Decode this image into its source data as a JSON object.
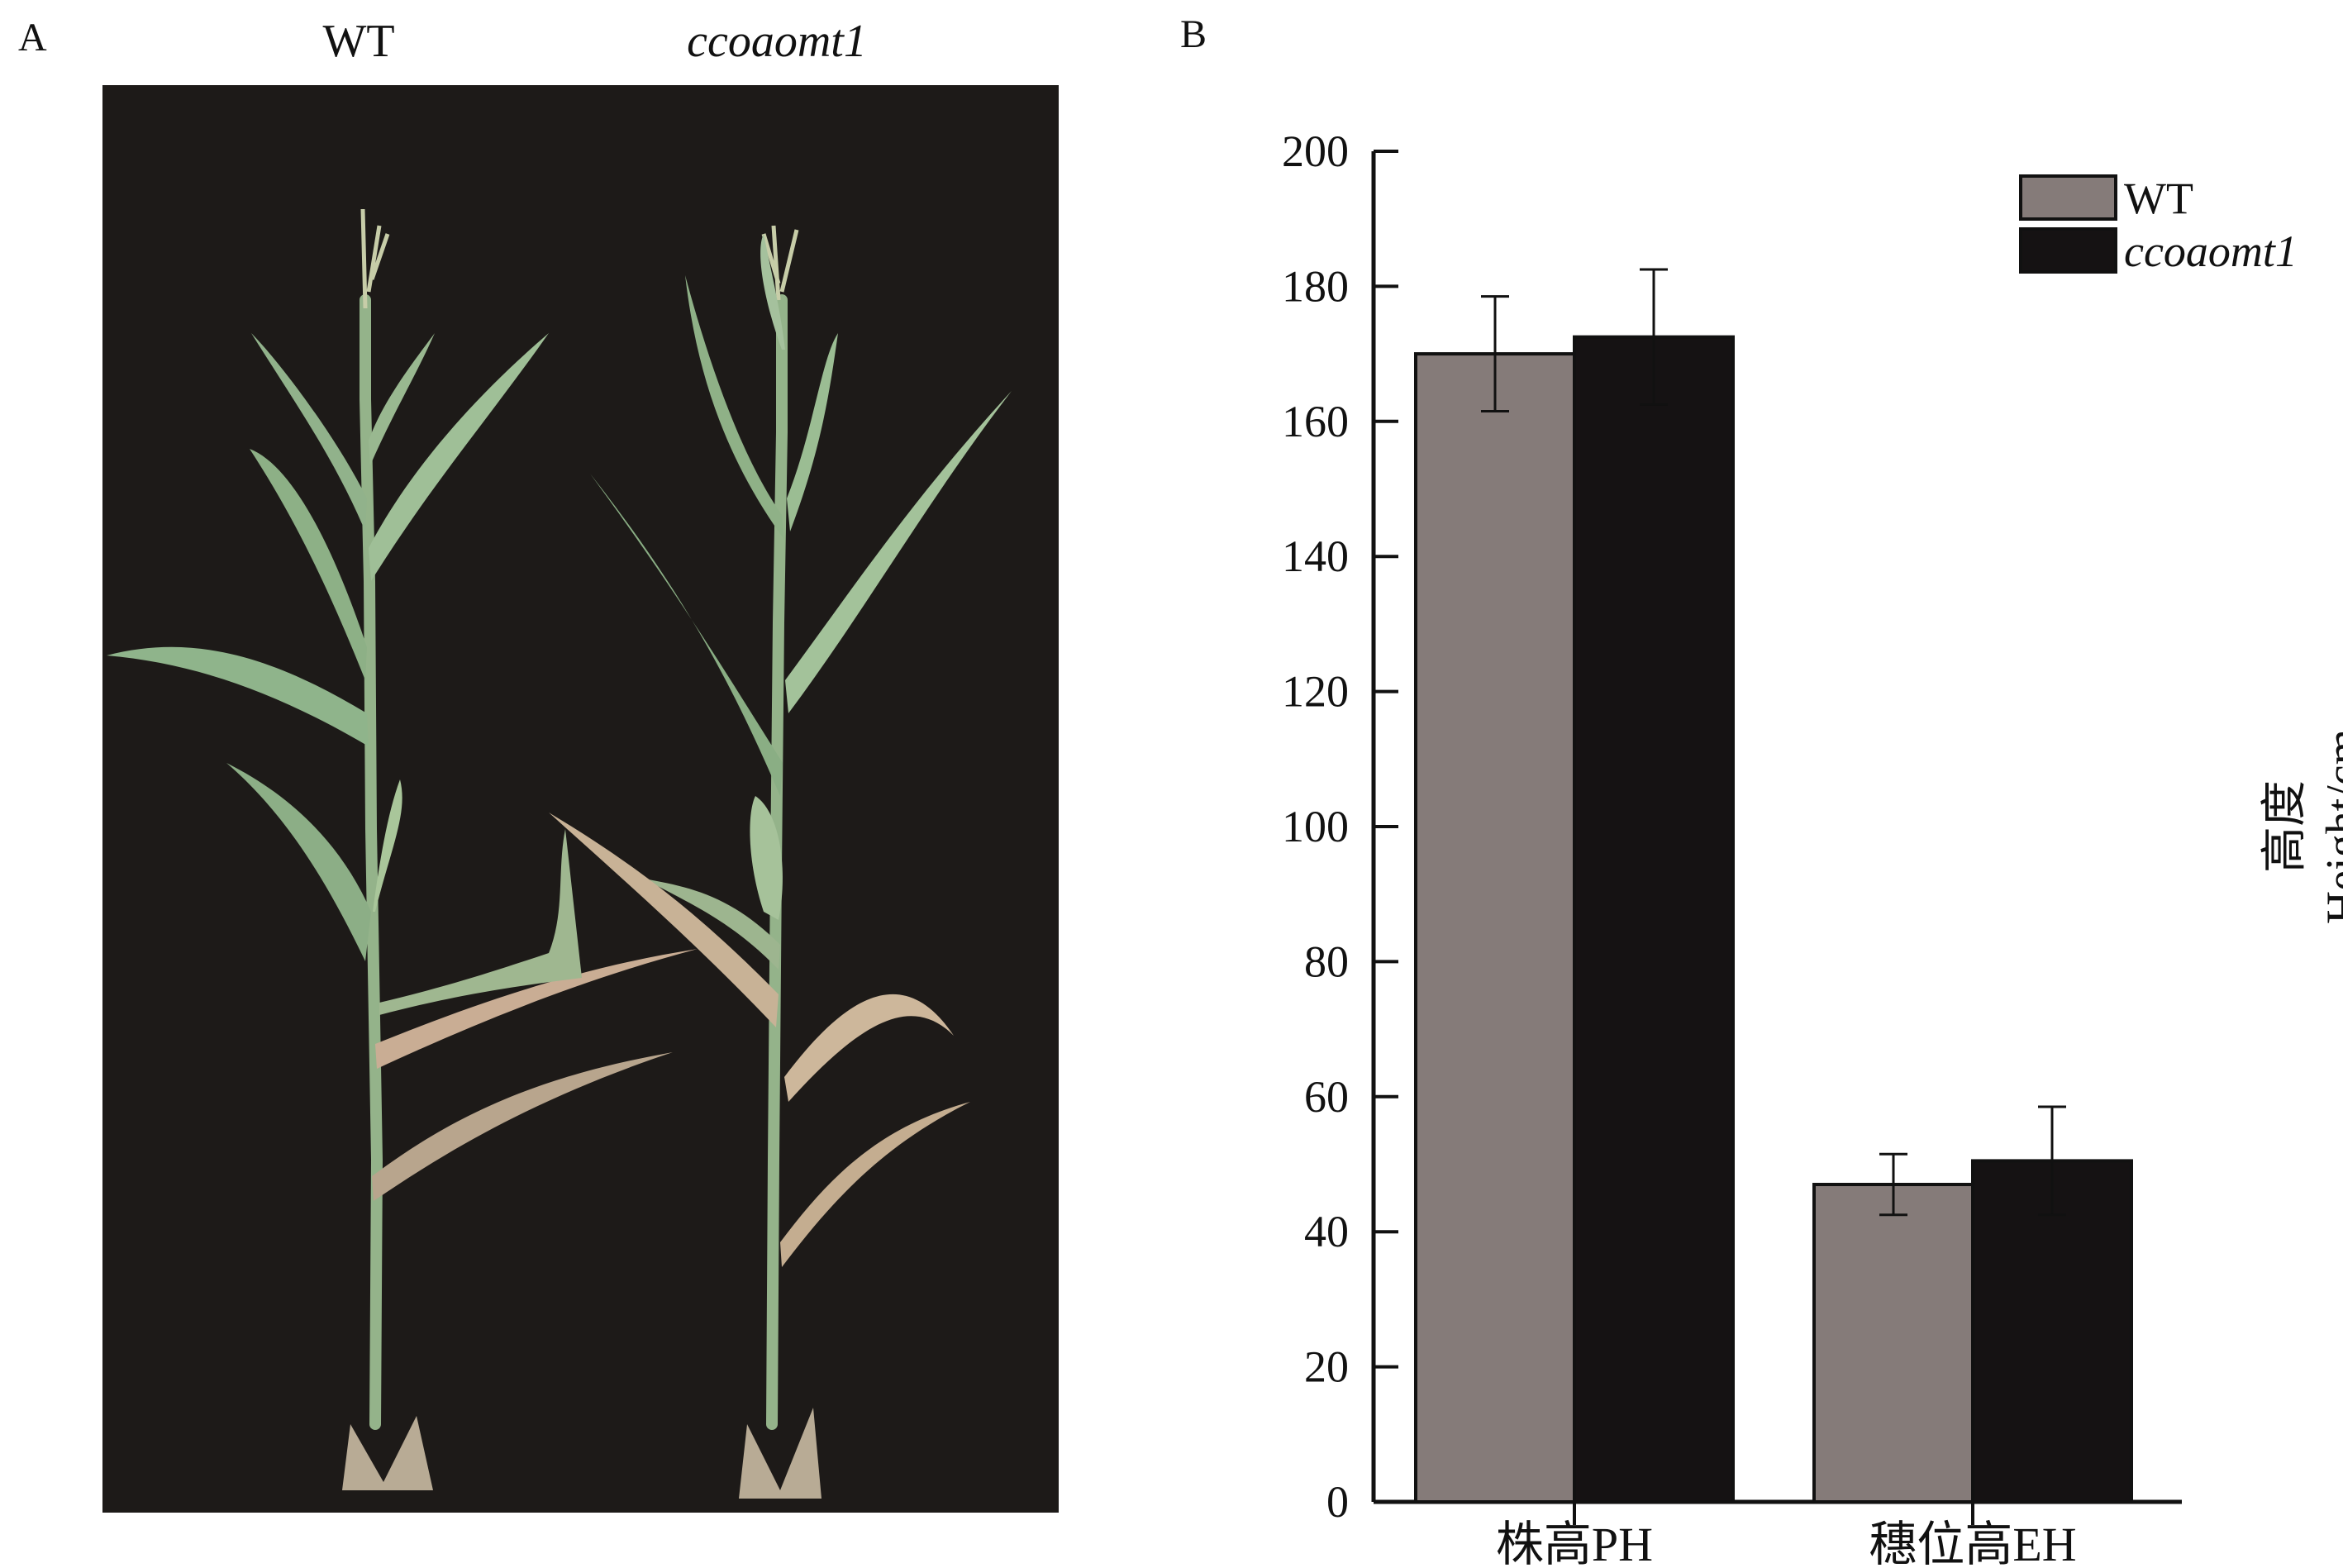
{
  "panel_a": {
    "label": "A",
    "columns": [
      {
        "label": "WT",
        "italic": false
      },
      {
        "label": "ccoaomt1",
        "italic": true
      }
    ],
    "photo_background": "#1d1a18"
  },
  "panel_b": {
    "label": "B"
  },
  "chart_data": {
    "type": "bar",
    "title": "",
    "ylabel_cn": "高度",
    "ylabel_en": "Height/cm",
    "xlabel": "",
    "categories": [
      "株高PH",
      "穗位高EH"
    ],
    "series": [
      {
        "name": "WT",
        "italic": false,
        "color": "#857b79",
        "values": [
          170,
          47
        ],
        "errors": [
          8.5,
          4.5
        ]
      },
      {
        "name": "ccoaomt1",
        "italic": true,
        "color": "#151213",
        "values": [
          172.5,
          50.5
        ],
        "errors": [
          10,
          8
        ]
      }
    ],
    "ylim": [
      0,
      200
    ],
    "yticks": [
      0,
      20,
      40,
      60,
      80,
      100,
      120,
      140,
      160,
      180,
      200
    ],
    "grid": false,
    "legend_position": "top-right"
  }
}
